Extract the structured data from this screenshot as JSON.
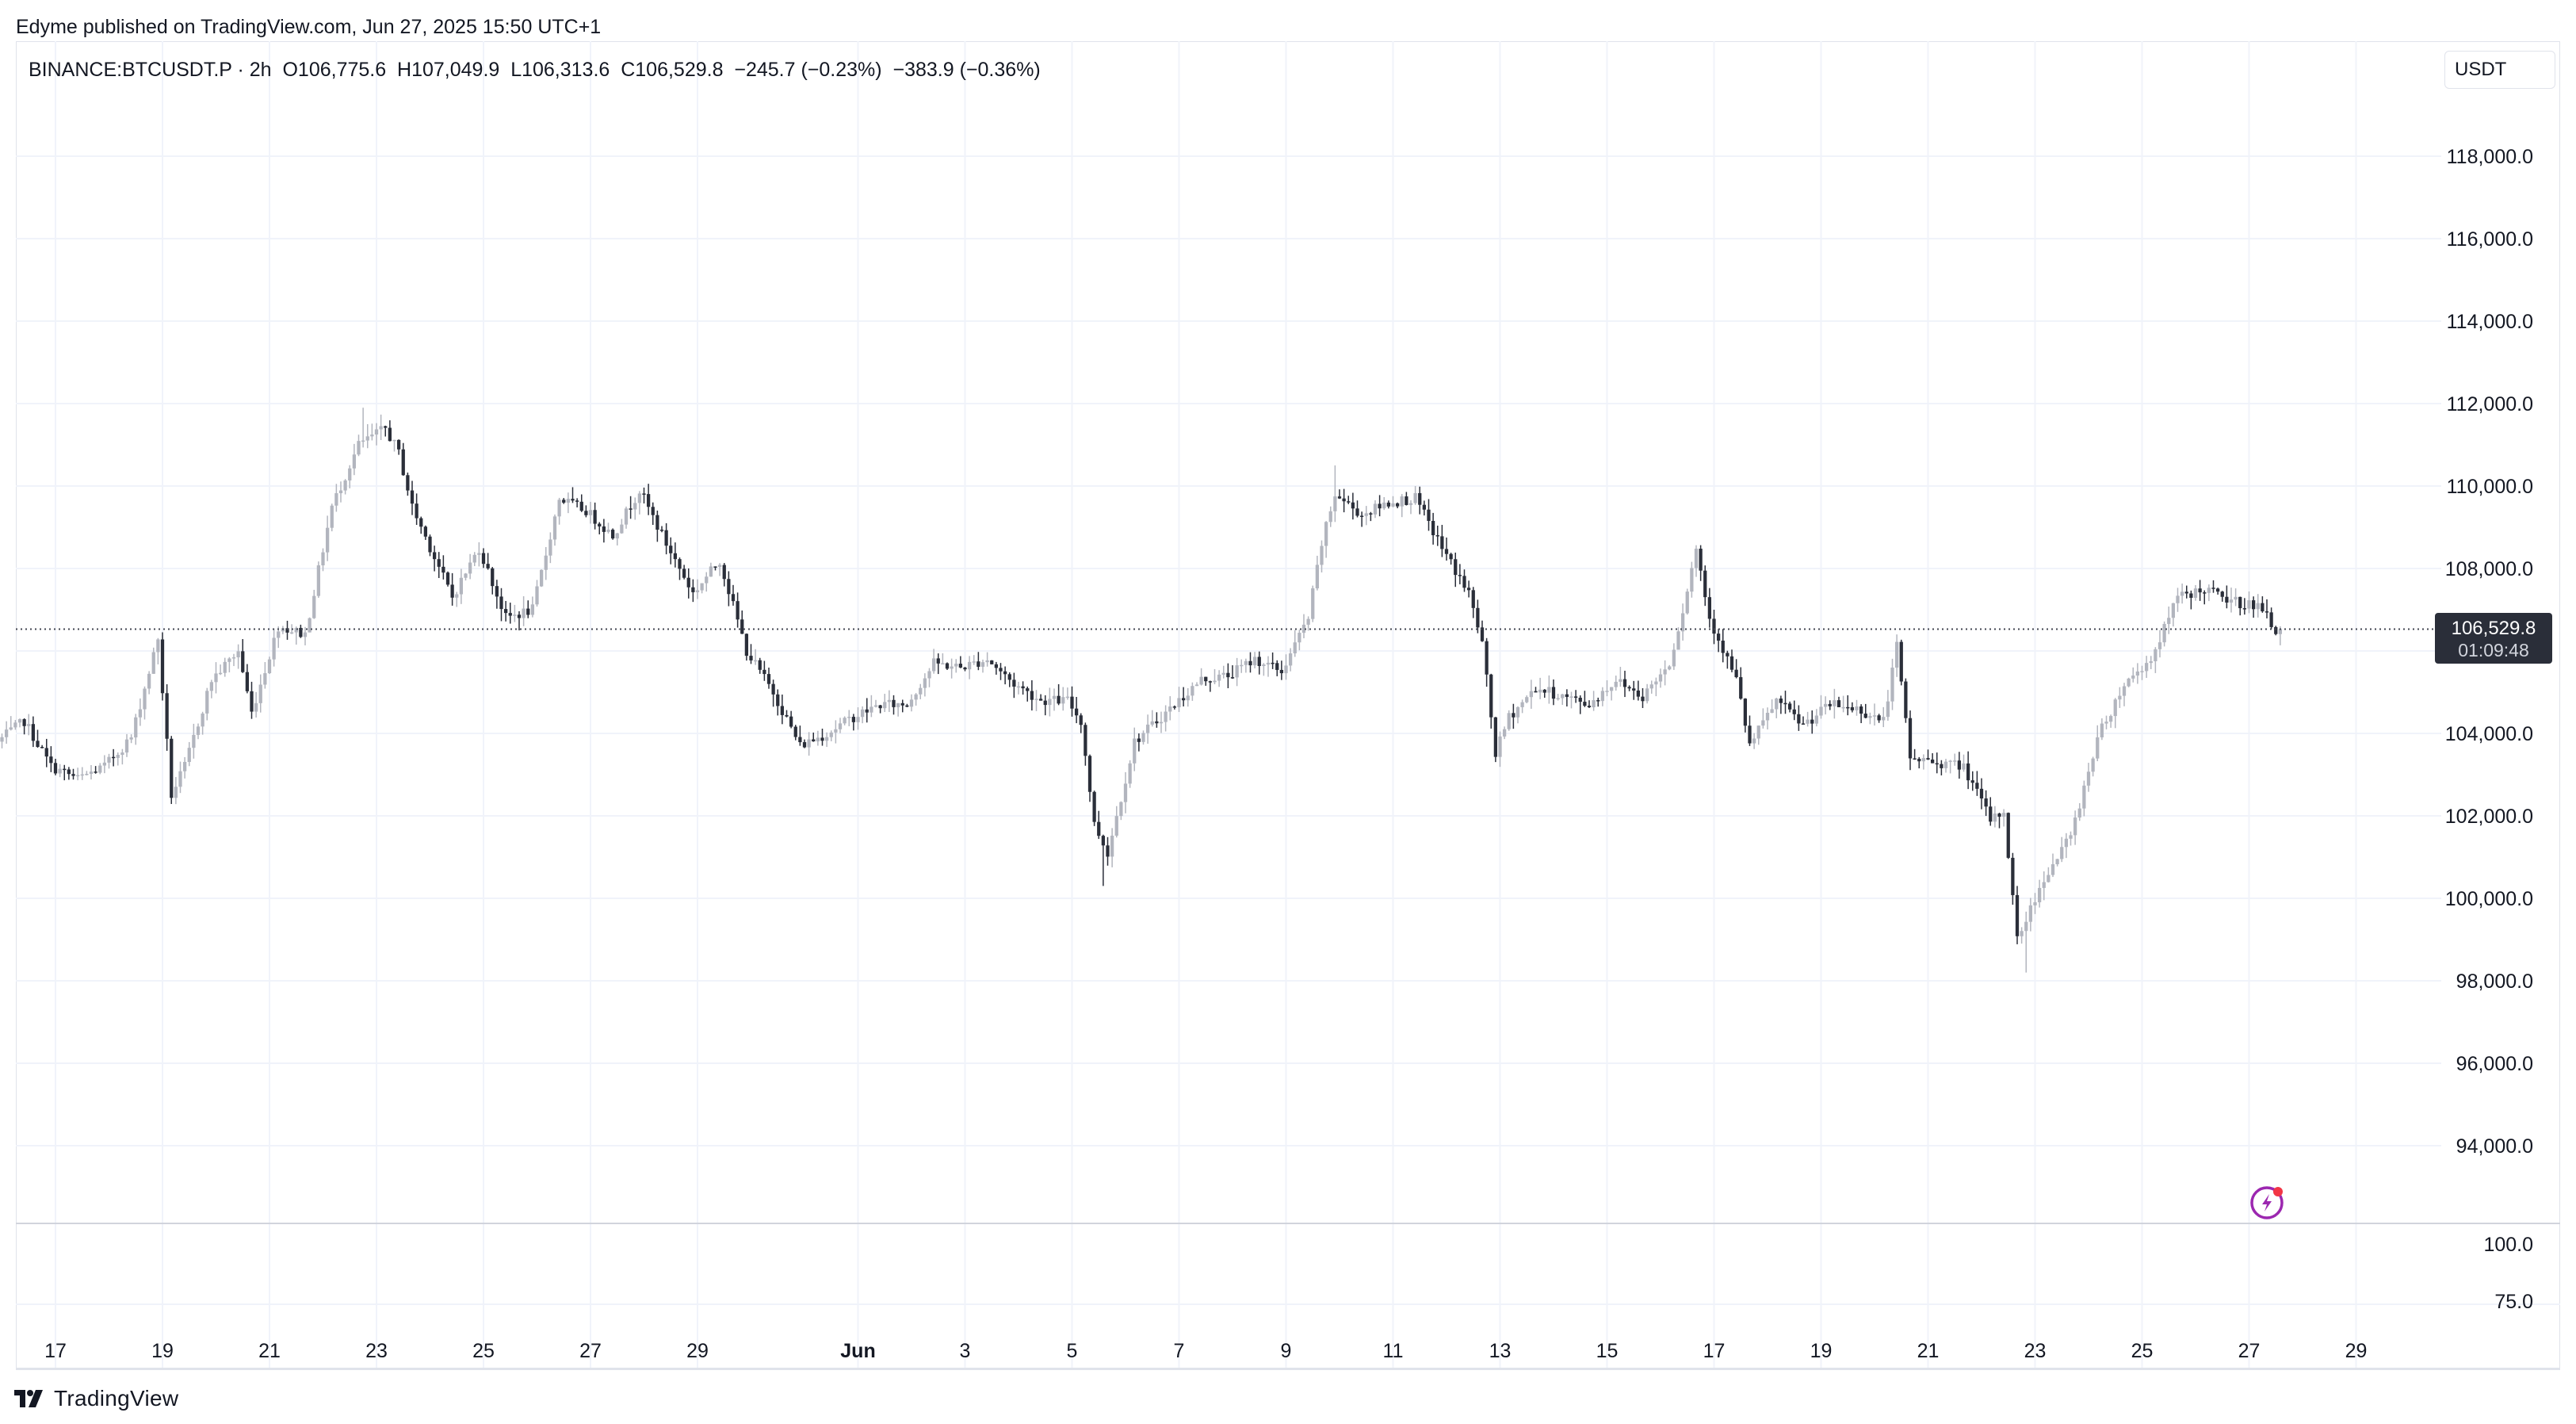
{
  "header": {
    "publisher_line": "Edyme published on TradingView.com, Jun 27, 2025 15:50 UTC+1"
  },
  "legend": {
    "symbol": "BINANCE:BTCUSDT.P · 2h",
    "ohlc": "O106,775.6  H107,049.9  L106,313.6  C106,529.8  −245.7 (−0.23%)  −383.9 (−0.36%)"
  },
  "currency_label": "USDT",
  "footer": {
    "brand": "TradingView"
  },
  "price_badge": {
    "price": "106,529.8",
    "countdown": "01:09:48"
  },
  "colors": {
    "bull": "#b2b5be",
    "bear": "#2a2e39",
    "grid": "#f0f3fa",
    "badge": "#2a2e39",
    "indicator_icon": "#9c27b0",
    "notification_dot": "#f23645"
  },
  "indicator_icon": "lightning-icon",
  "chart_data": {
    "type": "candlestick",
    "symbol": "BINANCE:BTCUSDT.P",
    "interval": "2h",
    "currency": "USDT",
    "last_price": 106529.8,
    "y_range": [
      92000,
      120000
    ],
    "grid": true,
    "price_ticks": [
      118000,
      116000,
      114000,
      112000,
      110000,
      108000,
      106000,
      104000,
      102000,
      100000,
      98000,
      96000,
      94000
    ],
    "price_tick_labels": [
      "118,000.0",
      "116,000.0",
      "114,000.0",
      "112,000.0",
      "110,000.0",
      "108,000.0",
      "",
      "104,000.0",
      "102,000.0",
      "100,000.0",
      "98,000.0",
      "96,000.0",
      "94,000.0"
    ],
    "sub_pane_ticks": [
      "100.0",
      "75.0"
    ],
    "x_range": [
      "2025-05-16",
      "2025-06-30"
    ],
    "x_ticks": [
      {
        "date": "2025-05-17",
        "label": "17"
      },
      {
        "date": "2025-05-19",
        "label": "19"
      },
      {
        "date": "2025-05-21",
        "label": "21"
      },
      {
        "date": "2025-05-23",
        "label": "23"
      },
      {
        "date": "2025-05-25",
        "label": "25"
      },
      {
        "date": "2025-05-27",
        "label": "27"
      },
      {
        "date": "2025-05-29",
        "label": "29"
      },
      {
        "date": "2025-06-01",
        "label": "Jun"
      },
      {
        "date": "2025-06-03",
        "label": "3"
      },
      {
        "date": "2025-06-05",
        "label": "5"
      },
      {
        "date": "2025-06-07",
        "label": "7"
      },
      {
        "date": "2025-06-09",
        "label": "9"
      },
      {
        "date": "2025-06-11",
        "label": "11"
      },
      {
        "date": "2025-06-13",
        "label": "13"
      },
      {
        "date": "2025-06-15",
        "label": "15"
      },
      {
        "date": "2025-06-17",
        "label": "17"
      },
      {
        "date": "2025-06-19",
        "label": "19"
      },
      {
        "date": "2025-06-21",
        "label": "21"
      },
      {
        "date": "2025-06-23",
        "label": "23"
      },
      {
        "date": "2025-06-25",
        "label": "25"
      },
      {
        "date": "2025-06-27",
        "label": "27"
      },
      {
        "date": "2025-06-29",
        "label": "29"
      }
    ],
    "path_keypoints": [
      [
        "2025-05-16T00:00",
        103800
      ],
      [
        "2025-05-16T12:00",
        104300
      ],
      [
        "2025-05-17T00:00",
        103200
      ],
      [
        "2025-05-17T12:00",
        102900
      ],
      [
        "2025-05-18T00:00",
        103200
      ],
      [
        "2025-05-18T12:00",
        103900
      ],
      [
        "2025-05-19T00:00",
        106300
      ],
      [
        "2025-05-19T06:00",
        102500
      ],
      [
        "2025-05-19T12:00",
        103200
      ],
      [
        "2025-05-20T00:00",
        105300
      ],
      [
        "2025-05-20T12:00",
        106000
      ],
      [
        "2025-05-20T18:00",
        104500
      ],
      [
        "2025-05-21T06:00",
        106600
      ],
      [
        "2025-05-21T18:00",
        106400
      ],
      [
        "2025-05-22T06:00",
        109500
      ],
      [
        "2025-05-22T18:00",
        111000
      ],
      [
        "2025-05-23T06:00",
        111400
      ],
      [
        "2025-05-23T12:00",
        110800
      ],
      [
        "2025-05-23T18:00",
        109500
      ],
      [
        "2025-05-24T12:00",
        107300
      ],
      [
        "2025-05-25T00:00",
        108500
      ],
      [
        "2025-05-25T12:00",
        106800
      ],
      [
        "2025-05-26T00:00",
        107000
      ],
      [
        "2025-05-26T12:00",
        109700
      ],
      [
        "2025-05-27T00:00",
        109400
      ],
      [
        "2025-05-27T12:00",
        108800
      ],
      [
        "2025-05-28T00:00",
        109900
      ],
      [
        "2025-05-28T12:00",
        108600
      ],
      [
        "2025-05-29T00:00",
        107400
      ],
      [
        "2025-05-29T12:00",
        108200
      ],
      [
        "2025-05-30T00:00",
        106000
      ],
      [
        "2025-05-30T12:00",
        105000
      ],
      [
        "2025-05-31T00:00",
        103700
      ],
      [
        "2025-05-31T12:00",
        104000
      ],
      [
        "2025-06-01T00:00",
        104400
      ],
      [
        "2025-06-01T12:00",
        104700
      ],
      [
        "2025-06-02T00:00",
        104700
      ],
      [
        "2025-06-02T12:00",
        105700
      ],
      [
        "2025-06-03T00:00",
        105600
      ],
      [
        "2025-06-03T12:00",
        105800
      ],
      [
        "2025-06-04T00:00",
        105200
      ],
      [
        "2025-06-04T12:00",
        104800
      ],
      [
        "2025-06-05T00:00",
        104800
      ],
      [
        "2025-06-05T06:00",
        104300
      ],
      [
        "2025-06-05T12:00",
        101800
      ],
      [
        "2025-06-05T18:00",
        101100
      ],
      [
        "2025-06-06T06:00",
        103800
      ],
      [
        "2025-06-06T18:00",
        104400
      ],
      [
        "2025-06-07T12:00",
        105300
      ],
      [
        "2025-06-08T00:00",
        105400
      ],
      [
        "2025-06-08T12:00",
        105800
      ],
      [
        "2025-06-09T00:00",
        105500
      ],
      [
        "2025-06-09T12:00",
        106800
      ],
      [
        "2025-06-09T18:00",
        108600
      ],
      [
        "2025-06-10T00:00",
        109800
      ],
      [
        "2025-06-10T12:00",
        109300
      ],
      [
        "2025-06-11T00:00",
        109600
      ],
      [
        "2025-06-11T12:00",
        109700
      ],
      [
        "2025-06-12T00:00",
        108500
      ],
      [
        "2025-06-12T12:00",
        107400
      ],
      [
        "2025-06-12T18:00",
        106200
      ],
      [
        "2025-06-13T00:00",
        103500
      ],
      [
        "2025-06-13T06:00",
        104400
      ],
      [
        "2025-06-13T18:00",
        105100
      ],
      [
        "2025-06-14T06:00",
        104900
      ],
      [
        "2025-06-14T18:00",
        104700
      ],
      [
        "2025-06-15T06:00",
        105300
      ],
      [
        "2025-06-15T18:00",
        104900
      ],
      [
        "2025-06-16T06:00",
        105700
      ],
      [
        "2025-06-16T12:00",
        107000
      ],
      [
        "2025-06-16T18:00",
        108500
      ],
      [
        "2025-06-17T00:00",
        106800
      ],
      [
        "2025-06-17T12:00",
        105300
      ],
      [
        "2025-06-17T18:00",
        103700
      ],
      [
        "2025-06-18T06:00",
        104800
      ],
      [
        "2025-06-18T18:00",
        104200
      ],
      [
        "2025-06-19T06:00",
        104700
      ],
      [
        "2025-06-19T18:00",
        104600
      ],
      [
        "2025-06-20T06:00",
        104300
      ],
      [
        "2025-06-20T12:00",
        106100
      ],
      [
        "2025-06-20T18:00",
        103400
      ],
      [
        "2025-06-21T06:00",
        103300
      ],
      [
        "2025-06-21T18:00",
        103200
      ],
      [
        "2025-06-22T06:00",
        101900
      ],
      [
        "2025-06-22T12:00",
        102100
      ],
      [
        "2025-06-22T18:00",
        99000
      ],
      [
        "2025-06-23T06:00",
        100500
      ],
      [
        "2025-06-23T18:00",
        101500
      ],
      [
        "2025-06-24T06:00",
        103900
      ],
      [
        "2025-06-24T18:00",
        105200
      ],
      [
        "2025-06-25T06:00",
        105800
      ],
      [
        "2025-06-25T18:00",
        107300
      ],
      [
        "2025-06-26T06:00",
        107500
      ],
      [
        "2025-06-26T18:00",
        107200
      ],
      [
        "2025-06-27T06:00",
        107100
      ],
      [
        "2025-06-27T14:00",
        106529.8
      ]
    ],
    "notable_extremes": [
      {
        "time": "2025-05-22T18:00",
        "type": "high",
        "value": 111900
      },
      {
        "time": "2025-06-05T14:00",
        "type": "low",
        "value": 100300
      },
      {
        "time": "2025-06-09T22:00",
        "type": "high",
        "value": 110500
      },
      {
        "time": "2025-06-22T20:00",
        "type": "low",
        "value": 98200
      }
    ]
  }
}
